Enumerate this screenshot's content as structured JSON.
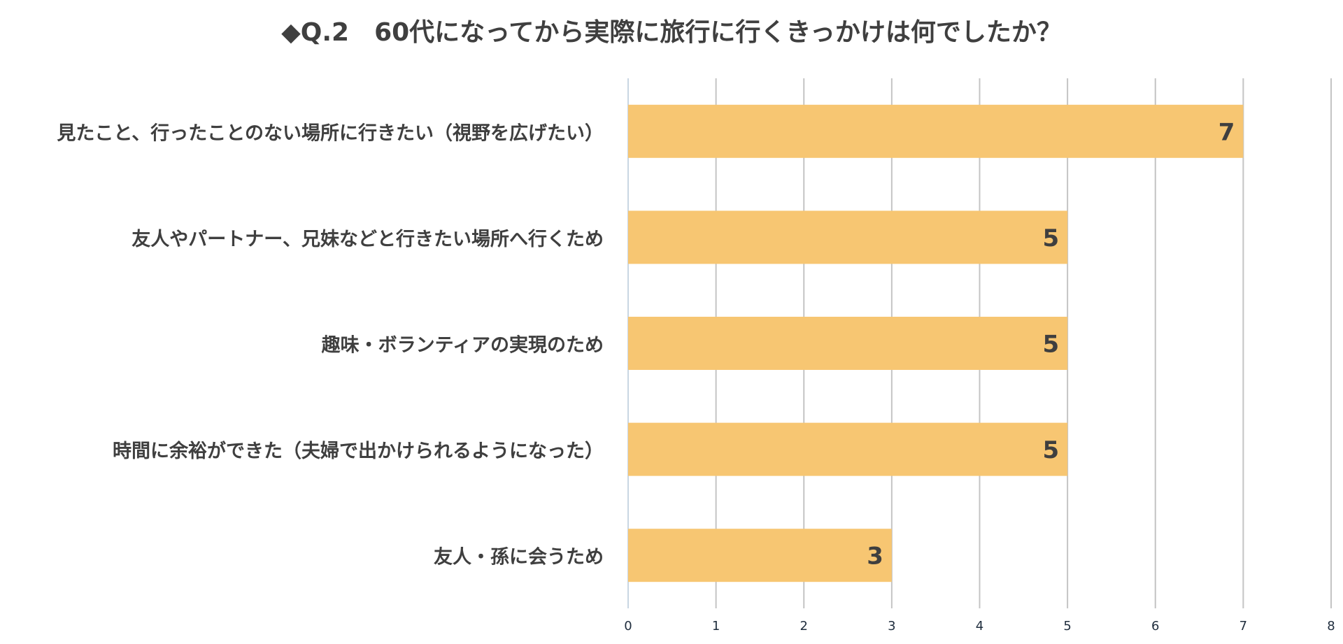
{
  "chart_data": {
    "type": "bar",
    "orientation": "horizontal",
    "title": "◆Q.2　60代になってから実際に旅行に行くきっかけは何でしたか？",
    "categories": [
      "見たこと、行ったことのない場所に行きたい（視野を広げたい）",
      "友人やパートナー、兄妹などと行きたい場所へ行くため",
      "趣味・ボランティアの実現のため",
      "時間に余裕ができた（夫婦で出かけられるようになった）",
      "友人・孫に会うため"
    ],
    "values": [
      7,
      5,
      5,
      5,
      3
    ],
    "xlim": [
      0,
      8
    ],
    "xticks": [
      "0",
      "1",
      "2",
      "3",
      "4",
      "5",
      "6",
      "7",
      "8"
    ],
    "xlabel": "",
    "ylabel": "",
    "grid": true,
    "legend": "none",
    "data_labels": true,
    "bar_color": "#f7c672",
    "text_color": "#3f3f3f"
  }
}
